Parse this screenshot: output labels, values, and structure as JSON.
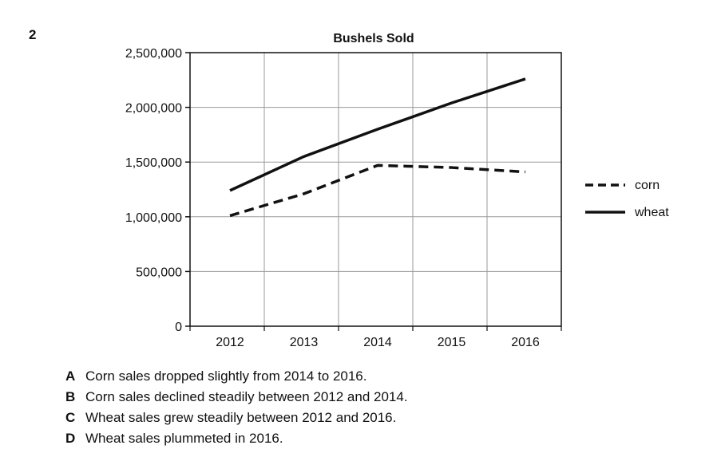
{
  "question": {
    "number": "2"
  },
  "chart_data": {
    "type": "line",
    "title": "Bushels Sold",
    "xlabel": "",
    "ylabel": "",
    "categories": [
      "2012",
      "2013",
      "2014",
      "2015",
      "2016"
    ],
    "ylim": [
      0,
      2500000
    ],
    "yticks": [
      0,
      500000,
      1000000,
      1500000,
      2000000,
      2500000
    ],
    "ytick_labels": [
      "0",
      "500,000",
      "1,000,000",
      "1,500,000",
      "2,000,000",
      "2,500,000"
    ],
    "grid": true,
    "legend_position": "right",
    "series": [
      {
        "name": "corn",
        "style": "dashed",
        "color": "#111111",
        "values": [
          1010000,
          1210000,
          1470000,
          1450000,
          1410000
        ]
      },
      {
        "name": "wheat",
        "style": "solid",
        "color": "#111111",
        "values": [
          1240000,
          1550000,
          1800000,
          2040000,
          2260000
        ]
      }
    ]
  },
  "choices": [
    {
      "letter": "A",
      "text": "Corn sales dropped slightly from 2014 to 2016."
    },
    {
      "letter": "B",
      "text": "Corn sales declined steadily between 2012 and 2014."
    },
    {
      "letter": "C",
      "text": "Wheat sales grew steadily between 2012 and 2016."
    },
    {
      "letter": "D",
      "text": "Wheat sales plummeted in 2016."
    }
  ]
}
